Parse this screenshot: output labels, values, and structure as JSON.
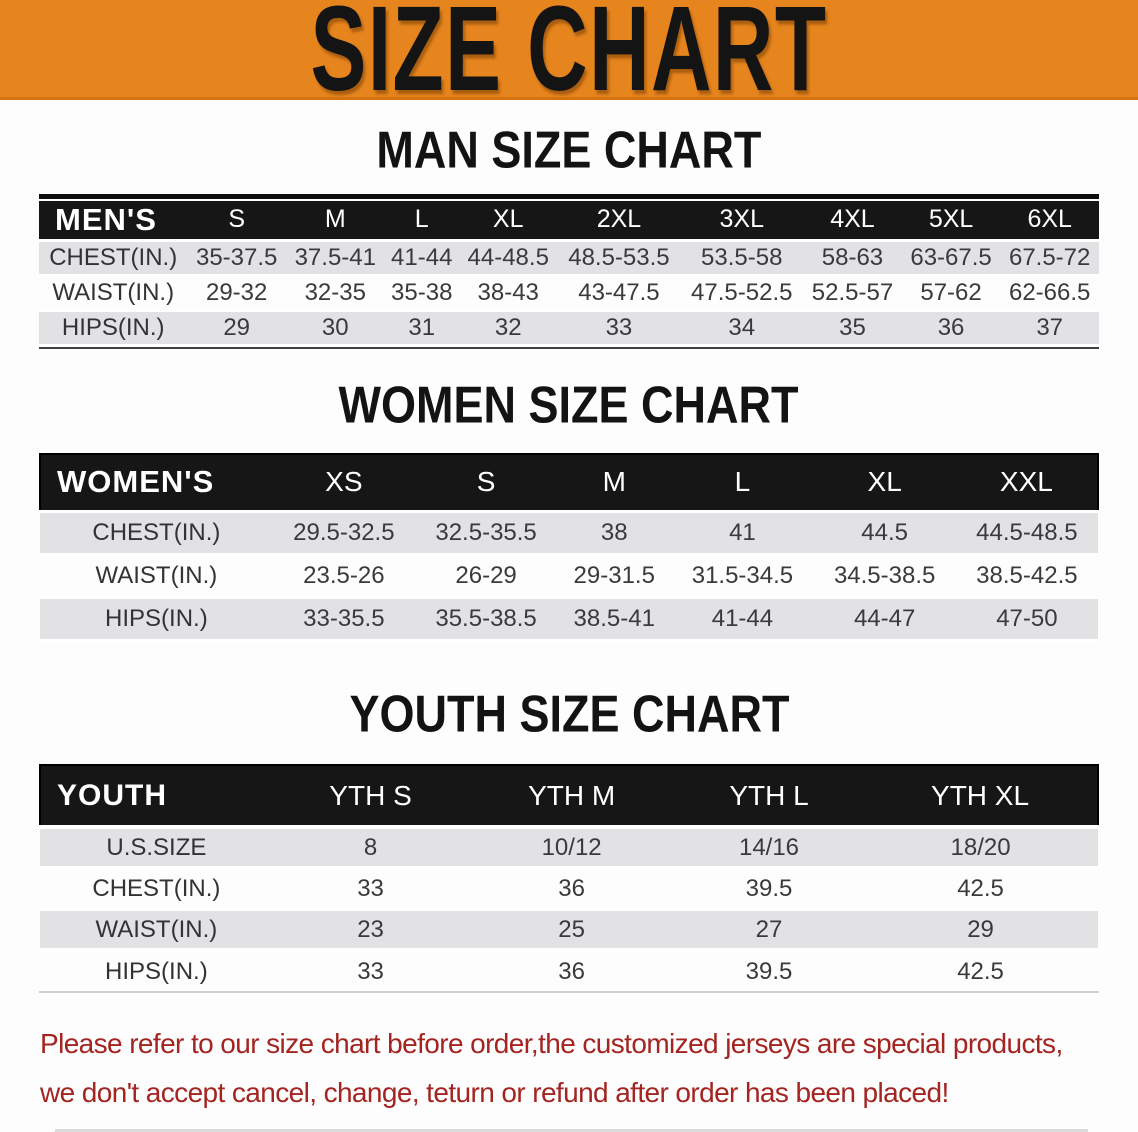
{
  "banner": {
    "title": "SIZE CHART"
  },
  "colors": {
    "banner_orange": "#E6841D",
    "table_header_black": "#161616",
    "row_stripe_gray": "#E2E2E4",
    "disclaimer_red": "#A32421"
  },
  "sections": [
    {
      "heading": "MAN SIZE CHART",
      "table": {
        "label": "MEN'S",
        "columns": [
          "S",
          "M",
          "L",
          "XL",
          "2XL",
          "3XL",
          "4XL",
          "5XL",
          "6XL"
        ],
        "rows": [
          {
            "label": "CHEST(IN.)",
            "values": [
              "35-37.5",
              "37.5-41",
              "41-44",
              "44-48.5",
              "48.5-53.5",
              "53.5-58",
              "58-63",
              "63-67.5",
              "67.5-72"
            ]
          },
          {
            "label": "WAIST(IN.)",
            "values": [
              "29-32",
              "32-35",
              "35-38",
              "38-43",
              "43-47.5",
              "47.5-52.5",
              "52.5-57",
              "57-62",
              "62-66.5"
            ]
          },
          {
            "label": "HIPS(IN.)",
            "values": [
              "29",
              "30",
              "31",
              "32",
              "33",
              "34",
              "35",
              "36",
              "37"
            ]
          }
        ]
      }
    },
    {
      "heading": "WOMEN SIZE CHART",
      "table": {
        "label": "WOMEN'S",
        "columns": [
          "XS",
          "S",
          "M",
          "L",
          "XL",
          "XXL"
        ],
        "rows": [
          {
            "label": "CHEST(IN.)",
            "values": [
              "29.5-32.5",
              "32.5-35.5",
              "38",
              "41",
              "44.5",
              "44.5-48.5"
            ]
          },
          {
            "label": "WAIST(IN.)",
            "values": [
              "23.5-26",
              "26-29",
              "29-31.5",
              "31.5-34.5",
              "34.5-38.5",
              "38.5-42.5"
            ]
          },
          {
            "label": "HIPS(IN.)",
            "values": [
              "33-35.5",
              "35.5-38.5",
              "38.5-41",
              "41-44",
              "44-47",
              "47-50"
            ]
          }
        ]
      }
    },
    {
      "heading": "YOUTH SIZE CHART",
      "table": {
        "label": "YOUTH",
        "columns": [
          "YTH S",
          "YTH M",
          "YTH L",
          "YTH XL"
        ],
        "rows": [
          {
            "label": "U.S.SIZE",
            "values": [
              "8",
              "10/12",
              "14/16",
              "18/20"
            ]
          },
          {
            "label": "CHEST(IN.)",
            "values": [
              "33",
              "36",
              "39.5",
              "42.5"
            ]
          },
          {
            "label": "WAIST(IN.)",
            "values": [
              "23",
              "25",
              "27",
              "29"
            ]
          },
          {
            "label": "HIPS(IN.)",
            "values": [
              "33",
              "36",
              "39.5",
              "42.5"
            ]
          }
        ]
      }
    }
  ],
  "disclaimer": {
    "line1": "Please refer to our size chart before order,the customized jerseys are special products,",
    "line2": "we don't accept cancel, change, teturn or refund after order has been placed!"
  }
}
